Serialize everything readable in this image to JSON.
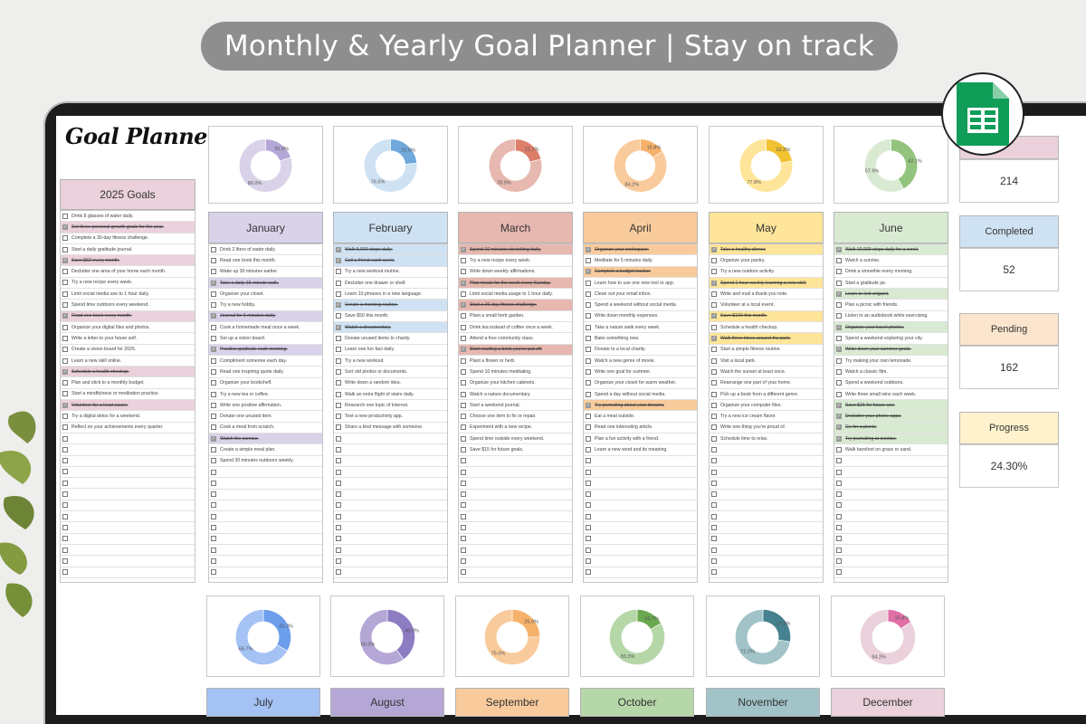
{
  "banner": {
    "text": "Monthly & Yearly Goal Planner | Stay on track"
  },
  "logo": {
    "text": "Goal Planner"
  },
  "yearly": {
    "title": "2025 Goals",
    "color": "#ead1dc",
    "items": [
      {
        "text": "Drink 8 glasses of water daily.",
        "checked": false
      },
      {
        "text": "Set three personal growth goals for the year.",
        "checked": true
      },
      {
        "text": "Complete a 30-day fitness challenge.",
        "checked": false
      },
      {
        "text": "Start a daily gratitude journal.",
        "checked": false
      },
      {
        "text": "Save $50 every month.",
        "checked": true
      },
      {
        "text": "Declutter one area of your home each month.",
        "checked": false
      },
      {
        "text": "Try a new recipe every week.",
        "checked": false
      },
      {
        "text": "Limit social media use to 1 hour daily.",
        "checked": false
      },
      {
        "text": "Spend time outdoors every weekend.",
        "checked": false
      },
      {
        "text": "Read one book every month.",
        "checked": true
      },
      {
        "text": "Organize your digital files and photos.",
        "checked": false
      },
      {
        "text": "Write a letter to your future self.",
        "checked": false
      },
      {
        "text": "Create a vision board for 2025.",
        "checked": false
      },
      {
        "text": "Learn a new skill online.",
        "checked": false
      },
      {
        "text": "Schedule a health checkup.",
        "checked": true
      },
      {
        "text": "Plan and stick to a monthly budget.",
        "checked": false
      },
      {
        "text": "Start a mindfulness or meditation practice.",
        "checked": false
      },
      {
        "text": "Volunteer for a local cause.",
        "checked": true
      },
      {
        "text": "Try a digital detox for a weekend.",
        "checked": false
      },
      {
        "text": "Reflect on your achievements every quarter.",
        "checked": false
      }
    ]
  },
  "months": [
    {
      "name": "January",
      "color": "#d9d2e9",
      "accent": "#b4a7d6",
      "done": "20.0%",
      "todo": "80.0%",
      "done_frac": 0.2,
      "items": [
        {
          "text": "Drink 2 liters of water daily.",
          "checked": false
        },
        {
          "text": "Read one book this month.",
          "checked": false
        },
        {
          "text": "Wake up 30 minutes earlier.",
          "checked": false
        },
        {
          "text": "Take a daily 15-minute walk.",
          "checked": true
        },
        {
          "text": "Organize your closet.",
          "checked": false
        },
        {
          "text": "Try a new hobby.",
          "checked": false
        },
        {
          "text": "Journal for 5 minutes daily.",
          "checked": true
        },
        {
          "text": "Cook a homemade meal once a week.",
          "checked": false
        },
        {
          "text": "Set up a vision board.",
          "checked": false
        },
        {
          "text": "Practice gratitude each morning.",
          "checked": true
        },
        {
          "text": "Compliment someone each day.",
          "checked": false
        },
        {
          "text": "Read one inspiring quote daily.",
          "checked": false
        },
        {
          "text": "Organize your bookshelf.",
          "checked": false
        },
        {
          "text": "Try a new tea or coffee.",
          "checked": false
        },
        {
          "text": "Write one positive affirmation.",
          "checked": false
        },
        {
          "text": "Donate one unused item.",
          "checked": false
        },
        {
          "text": "Cook a meal from scratch.",
          "checked": false
        },
        {
          "text": "Watch the sunrise.",
          "checked": true
        },
        {
          "text": "Create a simple meal plan.",
          "checked": false
        },
        {
          "text": "Spend 30 minutes outdoors weekly.",
          "checked": false
        }
      ]
    },
    {
      "name": "February",
      "color": "#cfe2f3",
      "accent": "#6fa8dc",
      "done": "23.5%",
      "todo": "76.5%",
      "done_frac": 0.235,
      "items": [
        {
          "text": "Walk 5,000 steps daily.",
          "checked": true
        },
        {
          "text": "Call a friend each week.",
          "checked": true
        },
        {
          "text": "Try a new workout routine.",
          "checked": false
        },
        {
          "text": "Declutter one drawer or shelf.",
          "checked": false
        },
        {
          "text": "Learn 10 phrases in a new language.",
          "checked": false
        },
        {
          "text": "Create a morning routine.",
          "checked": true
        },
        {
          "text": "Save $50 this month.",
          "checked": false
        },
        {
          "text": "Watch a documentary.",
          "checked": true
        },
        {
          "text": "Donate unused items to charity.",
          "checked": false
        },
        {
          "text": "Learn one fun fact daily.",
          "checked": false
        },
        {
          "text": "Try a new workout.",
          "checked": false
        },
        {
          "text": "Sort old photos or documents.",
          "checked": false
        },
        {
          "text": "Write down a random idea.",
          "checked": false
        },
        {
          "text": "Walk an extra flight of stairs daily.",
          "checked": false
        },
        {
          "text": "Research one topic of interest.",
          "checked": false
        },
        {
          "text": "Test a new productivity app.",
          "checked": false
        },
        {
          "text": "Share a kind message with someone.",
          "checked": false
        }
      ]
    },
    {
      "name": "March",
      "color": "#e6b8af",
      "accent": "#dd7e6b",
      "done": "21.1%",
      "todo": "78.9%",
      "done_frac": 0.211,
      "items": [
        {
          "text": "Spend 10 minutes stretching daily.",
          "checked": true
        },
        {
          "text": "Try a new recipe every week.",
          "checked": false
        },
        {
          "text": "Write down weekly affirmations.",
          "checked": false
        },
        {
          "text": "Plan meals for the week every Sunday.",
          "checked": true
        },
        {
          "text": "Limit social media usage to 1 hour daily.",
          "checked": false
        },
        {
          "text": "Start a 30-day fitness challenge.",
          "checked": true
        },
        {
          "text": "Plant a small herb garden.",
          "checked": false
        },
        {
          "text": "Drink tea instead of coffee once a week.",
          "checked": false
        },
        {
          "text": "Attend a free community class.",
          "checked": false
        },
        {
          "text": "Start reading a book you've put off.",
          "checked": true
        },
        {
          "text": "Plant a flower or herb.",
          "checked": false
        },
        {
          "text": "Spend 10 minutes meditating.",
          "checked": false
        },
        {
          "text": "Organize your kitchen cabinets.",
          "checked": false
        },
        {
          "text": "Watch a nature documentary.",
          "checked": false
        },
        {
          "text": "Start a weekend journal.",
          "checked": false
        },
        {
          "text": "Choose one item to fix or repair.",
          "checked": false
        },
        {
          "text": "Experiment with a new recipe.",
          "checked": false
        },
        {
          "text": "Spend time outside every weekend.",
          "checked": false
        },
        {
          "text": "Save $15 for future goals.",
          "checked": false
        }
      ]
    },
    {
      "name": "April",
      "color": "#f9cb9c",
      "accent": "#f6b26b",
      "done": "15.8%",
      "todo": "84.2%",
      "done_frac": 0.158,
      "items": [
        {
          "text": "Organize your workspace.",
          "checked": true
        },
        {
          "text": "Meditate for 5 minutes daily.",
          "checked": false
        },
        {
          "text": "Complete a budget tracker.",
          "checked": true
        },
        {
          "text": "Learn how to use one new tool or app.",
          "checked": false
        },
        {
          "text": "Clean out your email inbox.",
          "checked": false
        },
        {
          "text": "Spend a weekend without social media.",
          "checked": false
        },
        {
          "text": "Write down monthly expenses.",
          "checked": false
        },
        {
          "text": "Take a nature walk every week.",
          "checked": false
        },
        {
          "text": "Bake something new.",
          "checked": false
        },
        {
          "text": "Donate to a local charity.",
          "checked": false
        },
        {
          "text": "Watch a new genre of movie.",
          "checked": false
        },
        {
          "text": "Write one goal for summer.",
          "checked": false
        },
        {
          "text": "Organize your closet for warm weather.",
          "checked": false
        },
        {
          "text": "Spend a day without social media.",
          "checked": false
        },
        {
          "text": "Try journaling about your dreams.",
          "checked": true
        },
        {
          "text": "Eat a meal outside.",
          "checked": false
        },
        {
          "text": "Read one interesting article.",
          "checked": false
        },
        {
          "text": "Plan a fun activity with a friend.",
          "checked": false
        },
        {
          "text": "Learn a new word and its meaning.",
          "checked": false
        }
      ]
    },
    {
      "name": "May",
      "color": "#ffe599",
      "accent": "#f1c232",
      "done": "22.2%",
      "todo": "77.8%",
      "done_frac": 0.222,
      "items": [
        {
          "text": "Take a healthy dinner.",
          "checked": true
        },
        {
          "text": "Organize your pantry.",
          "checked": false
        },
        {
          "text": "Try a new outdoor activity.",
          "checked": false
        },
        {
          "text": "Spend 1 hour weekly learning a new skill.",
          "checked": true
        },
        {
          "text": "Write and mail a thank-you note.",
          "checked": false
        },
        {
          "text": "Volunteer at a local event.",
          "checked": false
        },
        {
          "text": "Save $100 this month.",
          "checked": true
        },
        {
          "text": "Schedule a health checkup.",
          "checked": false
        },
        {
          "text": "Walk three times around the park.",
          "checked": true
        },
        {
          "text": "Start a simple fitness routine.",
          "checked": false
        },
        {
          "text": "Visit a local park.",
          "checked": false
        },
        {
          "text": "Watch the sunset at least once.",
          "checked": false
        },
        {
          "text": "Rearrange one part of your home.",
          "checked": false
        },
        {
          "text": "Pick up a book from a different genre.",
          "checked": false
        },
        {
          "text": "Organize your computer files.",
          "checked": false
        },
        {
          "text": "Try a new ice cream flavor.",
          "checked": false
        },
        {
          "text": "Write one thing you're proud of.",
          "checked": false
        },
        {
          "text": "Schedule time to relax.",
          "checked": false
        }
      ]
    },
    {
      "name": "June",
      "color": "#d9ead3",
      "accent": "#93c47d",
      "done": "42.1%",
      "todo": "57.9%",
      "done_frac": 0.421,
      "items": [
        {
          "text": "Walk 10,000 steps daily for a week.",
          "checked": true
        },
        {
          "text": "Watch a sunrise.",
          "checked": false
        },
        {
          "text": "Drink a smoothie every morning.",
          "checked": false
        },
        {
          "text": "Start a gratitude jar.",
          "checked": false
        },
        {
          "text": "Learn to knit origami.",
          "checked": true
        },
        {
          "text": "Plan a picnic with friends.",
          "checked": false
        },
        {
          "text": "Listen to an audiobook while exercising.",
          "checked": false
        },
        {
          "text": "Organize your travel photos.",
          "checked": true
        },
        {
          "text": "Spend a weekend exploring your city.",
          "checked": false
        },
        {
          "text": "Write down your summer goals.",
          "checked": true
        },
        {
          "text": "Try making your own lemonade.",
          "checked": false
        },
        {
          "text": "Watch a classic film.",
          "checked": false
        },
        {
          "text": "Spend a weekend outdoors.",
          "checked": false
        },
        {
          "text": "Write three small wins each week.",
          "checked": false
        },
        {
          "text": "Save $15 for future use.",
          "checked": true
        },
        {
          "text": "Declutter your phone apps.",
          "checked": true
        },
        {
          "text": "Go for a picnic.",
          "checked": true
        },
        {
          "text": "Try journaling at sunrise.",
          "checked": true
        },
        {
          "text": "Walk barefoot on grass or sand.",
          "checked": false
        }
      ]
    }
  ],
  "months2": [
    {
      "name": "July",
      "color": "#a4c2f4",
      "accent": "#6d9eeb",
      "done": "33.3%",
      "todo": "66.7%",
      "done_frac": 0.333
    },
    {
      "name": "August",
      "color": "#b4a7d6",
      "accent": "#8e7cc3",
      "done": "40.0%",
      "todo": "60.0%",
      "done_frac": 0.4
    },
    {
      "name": "September",
      "color": "#f9cb9c",
      "accent": "#f6b26b",
      "done": "25.0%",
      "todo": "75.0%",
      "done_frac": 0.25
    },
    {
      "name": "October",
      "color": "#b6d7a8",
      "accent": "#6aa84f",
      "done": "16.7%",
      "todo": "83.3%",
      "done_frac": 0.167
    },
    {
      "name": "November",
      "color": "#a2c4c9",
      "accent": "#45818e",
      "done": "27.8%",
      "todo": "72.2%",
      "done_frac": 0.278
    },
    {
      "name": "December",
      "color": "#ead1dc",
      "accent": "#e06fa6",
      "done": "15.8%",
      "todo": "84.2%",
      "done_frac": 0.158
    }
  ],
  "stats": [
    {
      "label": "",
      "value": "214",
      "color": "#ead1dc"
    },
    {
      "label": "Completed",
      "value": "52",
      "color": "#cfe2f3"
    },
    {
      "label": "Pending",
      "value": "162",
      "color": "#fce5cd"
    },
    {
      "label": "Progress",
      "value": "24.30%",
      "color": "#fff2cc"
    }
  ]
}
